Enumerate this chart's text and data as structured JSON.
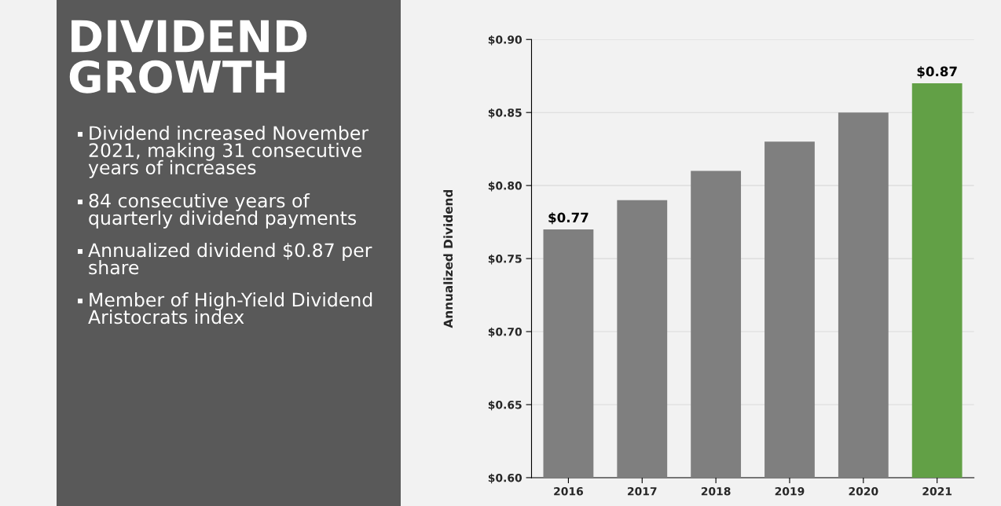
{
  "chart_data": {
    "type": "bar",
    "title": "DIVIDEND GROWTH",
    "ylabel": "Annualized Dividend",
    "categories": [
      "2016",
      "2017",
      "2018",
      "2019",
      "2020",
      "2021"
    ],
    "values": [
      0.77,
      0.79,
      0.81,
      0.83,
      0.85,
      0.87
    ],
    "colors": [
      "#7f7f7f",
      "#7f7f7f",
      "#7f7f7f",
      "#7f7f7f",
      "#7f7f7f",
      "#62a046"
    ],
    "value_labels": [
      "$0.77",
      null,
      null,
      null,
      null,
      "$0.87"
    ],
    "ylim": [
      0.6,
      0.9
    ],
    "yticks": [
      {
        "value": 0.6,
        "label": "$0.60"
      },
      {
        "value": 0.65,
        "label": "$0.65"
      },
      {
        "value": 0.7,
        "label": "$0.70"
      },
      {
        "value": 0.75,
        "label": "$0.75"
      },
      {
        "value": 0.8,
        "label": "$0.80"
      },
      {
        "value": 0.85,
        "label": "$0.85"
      },
      {
        "value": 0.9,
        "label": "$0.90"
      }
    ],
    "grid": "y",
    "annotations": [
      "Dividend increased November 2021, making 31 consecutive years of increases",
      "84 consecutive years of quarterly dividend payments",
      "Annualized dividend $0.87 per share",
      "Member of High-Yield Dividend Aristocrats index"
    ]
  }
}
